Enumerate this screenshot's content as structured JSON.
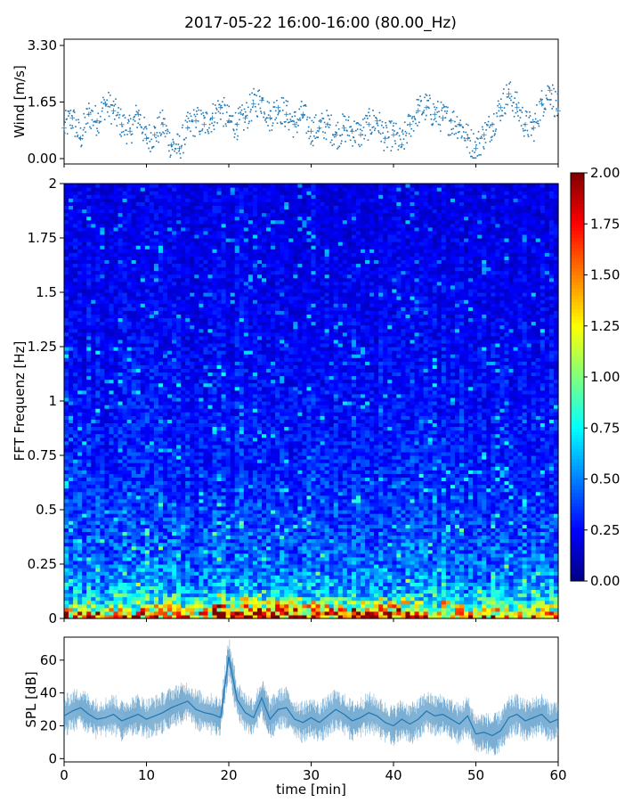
{
  "title": "2017-05-22 16:00-16:00 (80.00_Hz)",
  "chart_data": [
    {
      "type": "scatter",
      "panel": "wind",
      "ylabel": "Wind [m/s]",
      "ylim": [
        0.0,
        3.3
      ],
      "xlim": [
        0,
        60
      ],
      "yticks": [
        "0.00",
        "1.65",
        "3.30"
      ],
      "marker_color": "#1f77b4",
      "x": [
        0,
        1,
        2,
        3,
        4,
        5,
        6,
        7,
        8,
        9,
        10,
        11,
        12,
        13,
        14,
        15,
        16,
        17,
        18,
        19,
        20,
        21,
        22,
        23,
        24,
        25,
        26,
        27,
        28,
        29,
        30,
        31,
        32,
        33,
        34,
        35,
        36,
        37,
        38,
        39,
        40,
        41,
        42,
        43,
        44,
        45,
        46,
        47,
        48,
        49,
        50,
        51,
        52,
        53,
        54,
        55,
        56,
        57,
        58,
        59,
        60
      ],
      "y": [
        0.9,
        1.2,
        0.6,
        1.3,
        1.1,
        1.6,
        1.4,
        1.0,
        0.8,
        1.3,
        0.6,
        0.7,
        1.0,
        0.4,
        0.3,
        0.9,
        1.1,
        1.0,
        1.2,
        1.5,
        1.1,
        1.0,
        1.2,
        1.6,
        1.7,
        1.2,
        1.5,
        1.3,
        1.0,
        1.3,
        0.8,
        0.9,
        1.0,
        0.7,
        0.9,
        0.8,
        0.7,
        1.0,
        1.1,
        0.6,
        0.7,
        0.4,
        1.0,
        1.4,
        1.5,
        1.3,
        1.2,
        1.1,
        1.0,
        0.6,
        0.3,
        0.7,
        1.0,
        1.5,
        1.9,
        1.5,
        1.0,
        0.9,
        1.6,
        2.0,
        1.4
      ]
    },
    {
      "type": "heatmap",
      "panel": "spectrogram",
      "ylabel": "FFT Frequenz [Hz]",
      "xlim": [
        0,
        60
      ],
      "ylim": [
        0,
        2
      ],
      "yticks": [
        "0",
        "0.25",
        "0.5",
        "0.75",
        "1",
        "1.25",
        "1.5",
        "1.75",
        "2"
      ],
      "colormap": "jet",
      "colorbar_range": [
        0.0,
        2.0
      ],
      "colorbar_ticks": [
        "0.00",
        "0.25",
        "0.50",
        "0.75",
        "1.00",
        "1.25",
        "1.50",
        "1.75",
        "2.00"
      ],
      "mean_level_by_frequency": {
        "freq_hz": [
          0.0,
          0.05,
          0.1,
          0.15,
          0.25,
          0.5,
          0.75,
          1.0,
          1.5,
          2.0
        ],
        "level": [
          1.6,
          1.1,
          0.7,
          0.55,
          0.45,
          0.35,
          0.3,
          0.27,
          0.22,
          0.2
        ]
      },
      "high_energy_time_range_min": [
        18,
        42
      ]
    },
    {
      "type": "line",
      "panel": "spl",
      "xlabel": "time [min]",
      "ylabel": "SPL [dB]",
      "xlim": [
        0,
        60
      ],
      "ylim": [
        -2,
        74
      ],
      "xticks": [
        "0",
        "10",
        "20",
        "30",
        "40",
        "50",
        "60"
      ],
      "yticks": [
        "0",
        "20",
        "40",
        "60"
      ],
      "line_color": "#1f77b4",
      "x": [
        0,
        1,
        2,
        3,
        4,
        5,
        6,
        7,
        8,
        9,
        10,
        11,
        12,
        13,
        14,
        15,
        16,
        17,
        18,
        19,
        20,
        21,
        22,
        23,
        24,
        25,
        26,
        27,
        28,
        29,
        30,
        31,
        32,
        33,
        34,
        35,
        36,
        37,
        38,
        39,
        40,
        41,
        42,
        43,
        44,
        45,
        46,
        47,
        48,
        49,
        50,
        51,
        52,
        53,
        54,
        55,
        56,
        57,
        58,
        59,
        60
      ],
      "y": [
        26,
        29,
        31,
        27,
        24,
        25,
        27,
        23,
        25,
        27,
        24,
        26,
        28,
        31,
        33,
        35,
        30,
        28,
        27,
        25,
        62,
        36,
        28,
        25,
        37,
        24,
        30,
        31,
        24,
        22,
        25,
        22,
        26,
        30,
        27,
        23,
        25,
        28,
        26,
        22,
        20,
        24,
        21,
        24,
        29,
        26,
        27,
        24,
        21,
        26,
        15,
        16,
        14,
        17,
        25,
        27,
        23,
        25,
        27,
        22,
        24
      ]
    }
  ]
}
